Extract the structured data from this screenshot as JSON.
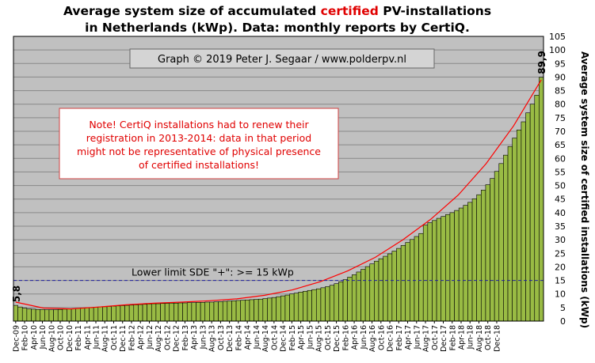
{
  "title": {
    "line1_a": "Average system size of accumulated ",
    "line1_highlight": "certified",
    "line1_b": " PV-installations",
    "line2": "in Netherlands (kWp). Data: monthly reports by CertiQ."
  },
  "copyright": "Graph © 2019 Peter J. Segaar / www.polderpv.nl",
  "note_lines": [
    "Note! CertiQ installations had to renew their",
    "registration in 2013-2014: data in that period",
    "might not be representative of physical presence",
    "of certified installations!"
  ],
  "limit_label": "Lower limit SDE \"+\":    >= 15 kWp",
  "colors": {
    "plot_bg": "#c0c0c0",
    "bar_fill": "#99bb44",
    "bar_stroke": "#000000",
    "trend": "#ff0000",
    "limit_line": "#2020a0",
    "highlight": "#e00000"
  },
  "chart_data": {
    "type": "bar",
    "ylabel": "Average system size of certified installations (kWp)",
    "ylim": [
      0,
      105
    ],
    "yticks": [
      0,
      5,
      10,
      15,
      20,
      25,
      30,
      35,
      40,
      45,
      50,
      55,
      60,
      65,
      70,
      75,
      80,
      85,
      90,
      95,
      100,
      105
    ],
    "grid": true,
    "x_start": "Dec-09",
    "x_end": "Dec-18",
    "xticks": [
      "Dec-09",
      "Feb-10",
      "Apr-10",
      "Jun-10",
      "Aug-10",
      "Oct-10",
      "Dec-10",
      "Feb-11",
      "Apr-11",
      "Jun-11",
      "Aug-11",
      "Oct-11",
      "Dec-11",
      "Feb-12",
      "Apr-12",
      "Jun-12",
      "Aug-12",
      "Oct-12",
      "Dec-12",
      "Feb-13",
      "Apr-13",
      "Jun-13",
      "Aug-13",
      "Oct-13",
      "Dec-13",
      "Feb-14",
      "Apr-14",
      "Jun-14",
      "Aug-14",
      "Oct-14",
      "Dec-14",
      "Feb-15",
      "Apr-15",
      "Jun-15",
      "Aug-15",
      "Oct-15",
      "Dec-15",
      "Feb-16",
      "Apr-16",
      "Jun-16",
      "Aug-16",
      "Oct-16",
      "Dec-16",
      "Feb-17",
      "Apr-17",
      "Jun-17",
      "Aug-17",
      "Oct-17",
      "Dec-17",
      "Feb-18",
      "Apr-18",
      "Jun-18",
      "Aug-18",
      "Oct-18",
      "Dec-18"
    ],
    "series": [
      {
        "values": [
          5.8,
          5.2,
          4.8,
          4.5,
          4.4,
          4.3,
          4.3,
          4.2,
          4.2,
          4.2,
          4.3,
          4.4,
          4.5,
          4.6,
          4.7,
          4.8,
          4.9,
          5.0,
          5.1,
          5.2,
          5.3,
          5.4,
          5.5,
          5.6,
          5.7,
          5.8,
          5.9,
          6.0,
          6.1,
          6.2,
          6.3,
          6.4,
          6.4,
          6.5,
          6.5,
          6.6,
          6.6,
          6.7,
          6.7,
          6.8,
          6.8,
          6.9,
          6.9,
          7.0,
          7.0,
          7.1,
          7.2,
          7.3,
          7.4,
          7.5,
          7.6,
          7.7,
          7.8,
          7.9,
          8.0,
          8.1,
          8.3,
          8.5,
          8.7,
          9.0,
          9.3,
          9.6,
          10.0,
          10.3,
          10.7,
          11.0,
          11.3,
          11.6,
          11.9,
          12.3,
          12.7,
          13.2,
          13.8,
          14.5,
          15.3,
          16.2,
          17.1,
          18.1,
          19.1,
          20.1,
          21.1,
          22.1,
          23.0,
          23.9,
          24.8,
          25.8,
          26.8,
          27.9,
          29.0,
          30.1,
          31.2,
          32.3,
          35.4,
          36.3,
          37.1,
          37.9,
          38.6,
          39.3,
          40.0,
          40.8,
          41.7,
          42.7,
          43.8,
          45.1,
          46.6,
          48.3,
          50.3,
          52.6,
          55.2,
          58.1,
          61.2,
          64.4,
          67.5,
          70.5,
          73.5,
          76.8,
          80.0,
          83.3,
          89.9
        ]
      }
    ],
    "trend_points": [
      7.0,
      4.8,
      4.5,
      5.2,
      6.0,
      6.6,
      7.0,
      7.5,
      8.2,
      9.5,
      11.5,
      14.5,
      18.5,
      23.5,
      30.0,
      37.5,
      46.5,
      58.0,
      72.0,
      89.0
    ],
    "limit_value": 15,
    "annotations": [
      {
        "label": "5,8",
        "at": "first"
      },
      {
        "label": "89,9",
        "at": "last"
      }
    ]
  }
}
